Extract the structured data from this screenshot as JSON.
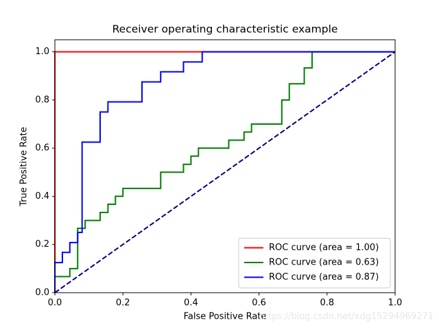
{
  "chart_data": {
    "type": "line",
    "title": "Receiver operating characteristic example",
    "x_label": "False Positive Rate",
    "y_label": "True Positive Rate",
    "xlim": [
      0,
      1.0
    ],
    "ylim": [
      0,
      1.05
    ],
    "xticks": [
      {
        "value": 0,
        "label": "0.0"
      },
      0.2,
      0.4,
      0.6,
      0.8,
      {
        "value": 1,
        "label": "1.0"
      }
    ],
    "yticks": [
      {
        "value": 0,
        "label": "0.0"
      },
      0.2,
      0.4,
      0.6,
      0.8,
      {
        "value": 1,
        "label": "1.0"
      }
    ],
    "legend_position": "lower right",
    "series": [
      {
        "name": "ROC curve (area = 1.00)",
        "color": "red",
        "x": [
          0,
          0,
          1
        ],
        "values": [
          0,
          1,
          1
        ]
      },
      {
        "name": "ROC curve (area = 0.63)",
        "color": "green",
        "x": [
          0,
          0,
          0.044,
          0.044,
          0.067,
          0.067,
          0.089,
          0.089,
          0.133,
          0.133,
          0.156,
          0.156,
          0.178,
          0.178,
          0.2,
          0.2,
          0.311,
          0.311,
          0.378,
          0.378,
          0.4,
          0.4,
          0.422,
          0.422,
          0.511,
          0.511,
          0.556,
          0.556,
          0.578,
          0.578,
          0.667,
          0.667,
          0.689,
          0.689,
          0.733,
          0.733,
          0.756,
          0.756,
          1
        ],
        "values": [
          0,
          0.067,
          0.067,
          0.1,
          0.1,
          0.267,
          0.267,
          0.3,
          0.3,
          0.333,
          0.333,
          0.367,
          0.367,
          0.4,
          0.4,
          0.433,
          0.433,
          0.5,
          0.5,
          0.533,
          0.533,
          0.567,
          0.567,
          0.6,
          0.6,
          0.633,
          0.633,
          0.667,
          0.667,
          0.7,
          0.7,
          0.8,
          0.8,
          0.867,
          0.867,
          0.933,
          0.933,
          1,
          1
        ]
      },
      {
        "name": "ROC curve (area = 0.87)",
        "color": "blue",
        "x": [
          0,
          0,
          0.022,
          0.022,
          0.044,
          0.044,
          0.067,
          0.067,
          0.08,
          0.08,
          0.133,
          0.133,
          0.156,
          0.156,
          0.256,
          0.256,
          0.311,
          0.311,
          0.378,
          0.378,
          0.433,
          0.433,
          1
        ],
        "values": [
          0,
          0.125,
          0.125,
          0.167,
          0.167,
          0.208,
          0.208,
          0.25,
          0.25,
          0.625,
          0.625,
          0.75,
          0.75,
          0.792,
          0.792,
          0.875,
          0.875,
          0.917,
          0.917,
          0.958,
          0.958,
          1,
          1
        ]
      }
    ],
    "diagonal": {
      "color": "navy",
      "dashed": true,
      "x": [
        0,
        1
      ],
      "values": [
        0,
        1
      ]
    },
    "watermark": "https://blog.csdn.net/xdg15294969271"
  }
}
